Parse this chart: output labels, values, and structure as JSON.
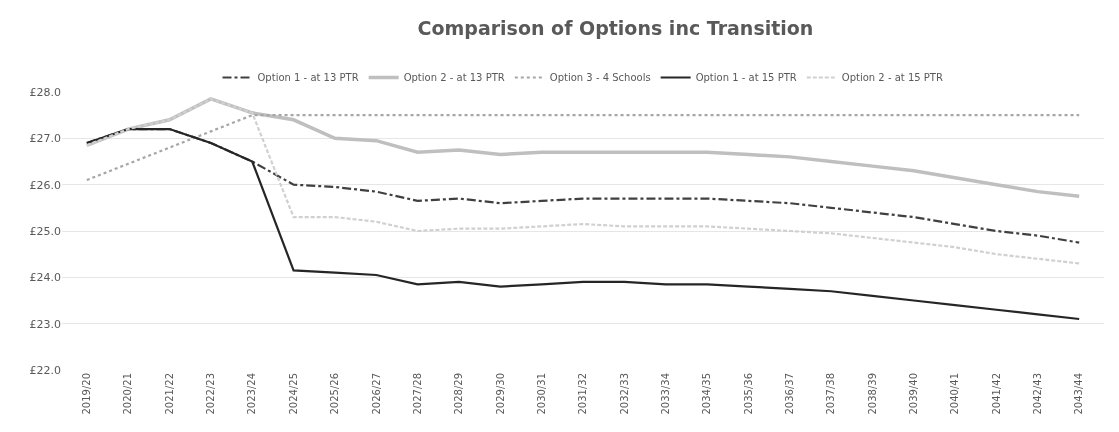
{
  "chart_data": {
    "type": "line",
    "title": "Comparison of Options inc Transition",
    "categories": [
      "2019/20",
      "2020/21",
      "2021/22",
      "2022/23",
      "2023/24",
      "2024/25",
      "2025/26",
      "2026/27",
      "2027/28",
      "2028/29",
      "2029/30",
      "2030/31",
      "2031/32",
      "2032/33",
      "2033/34",
      "2034/35",
      "2035/36",
      "2036/37",
      "2037/38",
      "2038/39",
      "2039/40",
      "2040/41",
      "2041/42",
      "2042/43",
      "2043/44"
    ],
    "series": [
      {
        "name": "Option 1 - at 13 PTR",
        "color": "#404040",
        "line_style": "dashdot",
        "values": [
          26.9,
          27.2,
          27.2,
          26.9,
          26.5,
          26.0,
          25.95,
          25.85,
          25.65,
          25.7,
          25.6,
          25.65,
          25.7,
          25.7,
          25.7,
          25.7,
          25.65,
          25.6,
          25.5,
          25.4,
          25.3,
          25.15,
          25.0,
          24.9,
          24.75
        ]
      },
      {
        "name": "Option 2 - at 13 PTR",
        "color": "#bfbfbf",
        "line_style": "solid",
        "values": [
          26.85,
          27.2,
          27.4,
          27.85,
          27.55,
          27.4,
          27.0,
          26.95,
          26.7,
          26.75,
          26.65,
          26.7,
          26.7,
          26.7,
          26.7,
          26.7,
          26.65,
          26.6,
          26.5,
          26.4,
          26.3,
          26.15,
          26.0,
          25.85,
          25.75
        ]
      },
      {
        "name": "Option 3 - 4 Schools",
        "color": "#a6a6a6",
        "line_style": "dotted",
        "values": [
          26.1,
          26.45,
          26.8,
          27.15,
          27.5,
          27.5,
          27.5,
          27.5,
          27.5,
          27.5,
          27.5,
          27.5,
          27.5,
          27.5,
          27.5,
          27.5,
          27.5,
          27.5,
          27.5,
          27.5,
          27.5,
          27.5,
          27.5,
          27.5,
          27.5
        ]
      },
      {
        "name": "Option 1 - at 15 PTR",
        "color": "#262626",
        "line_style": "solid",
        "values": [
          26.9,
          27.2,
          27.2,
          26.9,
          26.5,
          24.15,
          24.1,
          24.05,
          23.85,
          23.9,
          23.8,
          23.85,
          23.9,
          23.9,
          23.85,
          23.85,
          23.8,
          23.75,
          23.7,
          23.6,
          23.5,
          23.4,
          23.3,
          23.2,
          23.1
        ]
      },
      {
        "name": "Option 2 - at 15 PTR",
        "color": "#d0d0d0",
        "line_style": "dashed",
        "values": [
          26.85,
          27.2,
          27.4,
          27.85,
          27.55,
          25.3,
          25.3,
          25.2,
          25.0,
          25.05,
          25.05,
          25.1,
          25.15,
          25.1,
          25.1,
          25.1,
          25.05,
          25.0,
          24.95,
          24.85,
          24.75,
          24.65,
          24.5,
          24.4,
          24.3
        ]
      }
    ],
    "ylim": [
      22,
      28
    ],
    "yticks": [
      {
        "value": 22,
        "label": "£22.0"
      },
      {
        "value": 23,
        "label": "£23.0"
      },
      {
        "value": 24,
        "label": "£24.0"
      },
      {
        "value": 25,
        "label": "£25.0"
      },
      {
        "value": 26,
        "label": "£26.0"
      },
      {
        "value": 27,
        "label": "£27.0"
      },
      {
        "value": 28,
        "label": "£28.0"
      }
    ],
    "grid": "y",
    "legend": "top",
    "marker": "none"
  }
}
